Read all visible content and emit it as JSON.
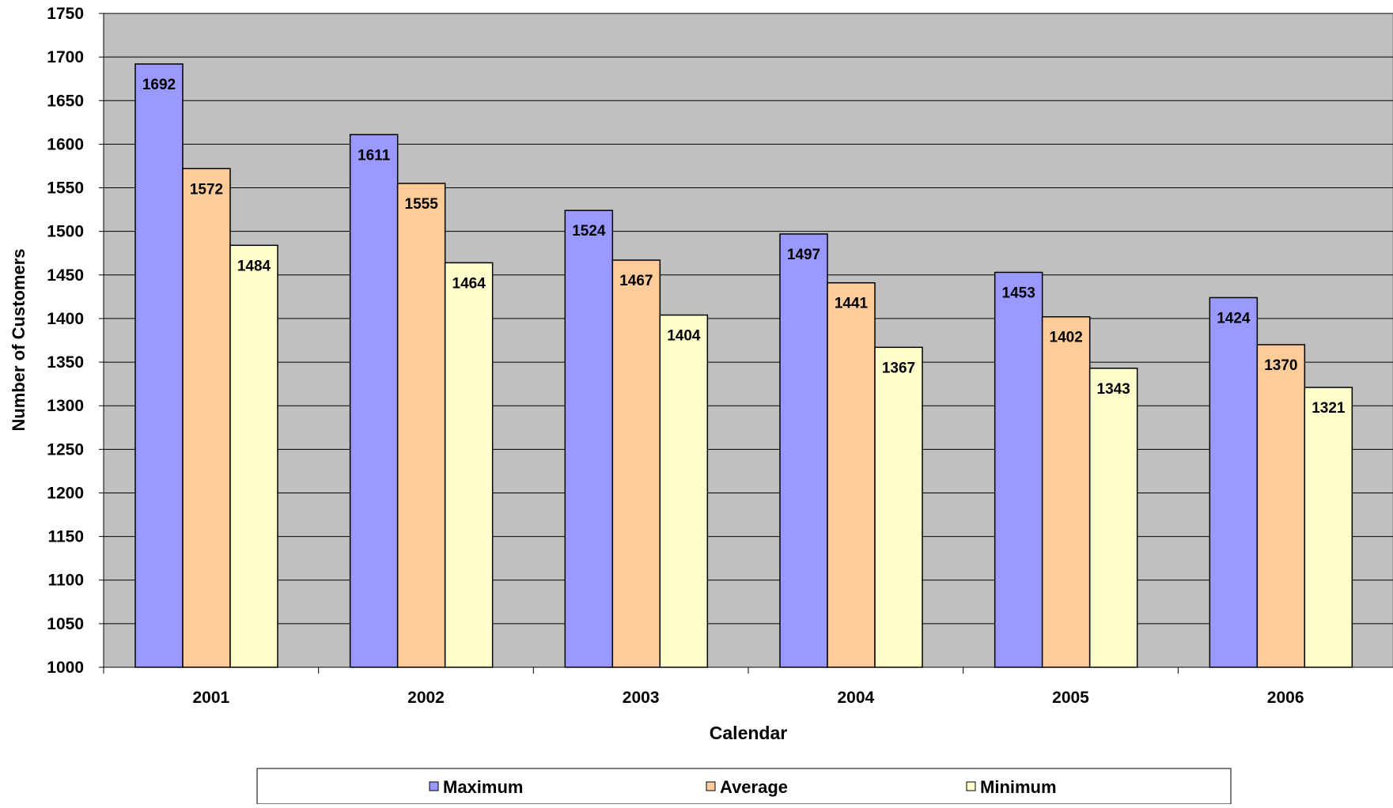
{
  "chart_data": {
    "type": "bar",
    "title": "",
    "xlabel": "Calendar",
    "ylabel": "Number of Customers",
    "categories": [
      "2001",
      "2002",
      "2003",
      "2004",
      "2005",
      "2006"
    ],
    "ylim": [
      1000,
      1750
    ],
    "y_ticks": [
      "1000",
      "1050",
      "1100",
      "1150",
      "1200",
      "1250",
      "1300",
      "1350",
      "1400",
      "1450",
      "1500",
      "1550",
      "1600",
      "1650",
      "1700",
      "1750"
    ],
    "grid": true,
    "legend_position": "bottom",
    "series": [
      {
        "name": "Maximum",
        "color": "#9999ff",
        "values": [
          1692,
          1611,
          1524,
          1497,
          1453,
          1424
        ]
      },
      {
        "name": "Average",
        "color": "#ffcc99",
        "values": [
          1572,
          1555,
          1467,
          1441,
          1402,
          1370
        ]
      },
      {
        "name": "Minimum",
        "color": "#ffffcc",
        "values": [
          1484,
          1464,
          1404,
          1367,
          1343,
          1321
        ]
      }
    ],
    "plot_background": "#c0c0c0"
  }
}
